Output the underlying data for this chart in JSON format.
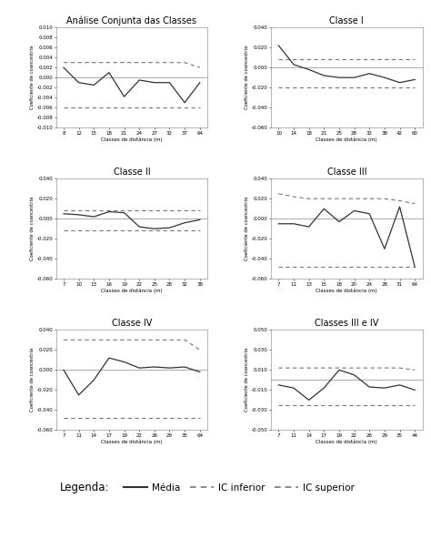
{
  "plots": [
    {
      "title": "Análise Conjunta das Classes",
      "x_labels": [
        "8",
        "12",
        "15",
        "18",
        "21",
        "24",
        "27",
        "32",
        "37",
        "64"
      ],
      "mean": [
        0.002,
        -0.001,
        -0.0015,
        0.001,
        -0.0038,
        -0.0005,
        -0.001,
        -0.001,
        -0.005,
        -0.001
      ],
      "ic_inf": [
        -0.006,
        -0.006,
        -0.006,
        -0.006,
        -0.006,
        -0.006,
        -0.006,
        -0.006,
        -0.006,
        -0.006
      ],
      "ic_sup": [
        0.003,
        0.003,
        0.003,
        0.003,
        0.003,
        0.003,
        0.003,
        0.003,
        0.003,
        0.002
      ],
      "ylim": [
        -0.01,
        0.01
      ],
      "yticks": [
        -0.01,
        -0.008,
        -0.006,
        -0.004,
        -0.002,
        0.0,
        0.002,
        0.004,
        0.006,
        0.008,
        0.01
      ],
      "ytick_labels": [
        "-0.010",
        "-0.008",
        "-0.006",
        "-0.004",
        "-0.002",
        "0.000",
        "0.002",
        "0.004",
        "0.006",
        "0.008",
        "0.010"
      ]
    },
    {
      "title": "Classe I",
      "x_labels": [
        "10",
        "14",
        "18",
        "21",
        "25",
        "28",
        "32",
        "38",
        "42",
        "60"
      ],
      "mean": [
        0.022,
        0.003,
        -0.002,
        -0.008,
        -0.01,
        -0.01,
        -0.006,
        -0.01,
        -0.015,
        -0.012
      ],
      "ic_inf": [
        -0.02,
        -0.02,
        -0.02,
        -0.02,
        -0.02,
        -0.02,
        -0.02,
        -0.02,
        -0.02,
        -0.02
      ],
      "ic_sup": [
        0.008,
        0.008,
        0.008,
        0.008,
        0.008,
        0.008,
        0.008,
        0.008,
        0.008,
        0.008
      ],
      "ylim": [
        -0.06,
        0.04
      ],
      "yticks": [
        -0.06,
        -0.04,
        -0.02,
        0.0,
        0.02,
        0.04
      ],
      "ytick_labels": [
        "-0.060",
        "-0.040",
        "-0.020",
        "0.000",
        "0.020",
        "0.040"
      ]
    },
    {
      "title": "Classe II",
      "x_labels": [
        "7",
        "10",
        "13",
        "16",
        "19",
        "22",
        "25",
        "28",
        "32",
        "38"
      ],
      "mean": [
        0.005,
        0.004,
        0.002,
        0.007,
        0.006,
        -0.008,
        -0.01,
        -0.009,
        -0.004,
        -0.001
      ],
      "ic_inf": [
        -0.012,
        -0.012,
        -0.012,
        -0.012,
        -0.012,
        -0.012,
        -0.012,
        -0.012,
        -0.012,
        -0.012
      ],
      "ic_sup": [
        0.008,
        0.008,
        0.008,
        0.008,
        0.008,
        0.008,
        0.008,
        0.008,
        0.008,
        0.008
      ],
      "ylim": [
        -0.06,
        0.04
      ],
      "yticks": [
        -0.06,
        -0.04,
        -0.02,
        0.0,
        0.02,
        0.04
      ],
      "ytick_labels": [
        "-0.060",
        "-0.040",
        "-0.020",
        "0.000",
        "0.020",
        "0.040"
      ]
    },
    {
      "title": "Classe III",
      "x_labels": [
        "7",
        "11",
        "13",
        "15",
        "18",
        "20",
        "24",
        "28",
        "31",
        "64"
      ],
      "mean": [
        -0.005,
        -0.005,
        -0.008,
        0.01,
        -0.003,
        0.008,
        0.005,
        -0.03,
        0.012,
        -0.048
      ],
      "ic_inf": [
        -0.048,
        -0.048,
        -0.048,
        -0.048,
        -0.048,
        -0.048,
        -0.048,
        -0.048,
        -0.048,
        -0.048
      ],
      "ic_sup": [
        0.025,
        0.022,
        0.02,
        0.02,
        0.02,
        0.02,
        0.02,
        0.02,
        0.018,
        0.015
      ],
      "ylim": [
        -0.06,
        0.04
      ],
      "yticks": [
        -0.06,
        -0.04,
        -0.02,
        0.0,
        0.02,
        0.04
      ],
      "ytick_labels": [
        "-0.060",
        "-0.040",
        "-0.020",
        "0.000",
        "0.020",
        "0.040"
      ]
    },
    {
      "title": "Classe IV",
      "x_labels": [
        "7",
        "11",
        "14",
        "17",
        "19",
        "22",
        "26",
        "29",
        "35",
        "64"
      ],
      "mean": [
        0.0,
        -0.025,
        -0.01,
        0.012,
        0.008,
        0.002,
        0.003,
        0.002,
        0.003,
        -0.002
      ],
      "ic_inf": [
        -0.048,
        -0.048,
        -0.048,
        -0.048,
        -0.048,
        -0.048,
        -0.048,
        -0.048,
        -0.048,
        -0.048
      ],
      "ic_sup": [
        0.03,
        0.03,
        0.03,
        0.03,
        0.03,
        0.03,
        0.03,
        0.03,
        0.03,
        0.02
      ],
      "ylim": [
        -0.06,
        0.04
      ],
      "yticks": [
        -0.06,
        -0.04,
        -0.02,
        0.0,
        0.02,
        0.04
      ],
      "ytick_labels": [
        "-0.060",
        "-0.040",
        "-0.020",
        "0.000",
        "0.020",
        "0.040"
      ]
    },
    {
      "title": "Classes III e IV",
      "x_labels": [
        "7",
        "11",
        "14",
        "17",
        "19",
        "22",
        "26",
        "29",
        "35",
        "44"
      ],
      "mean": [
        -0.005,
        -0.008,
        -0.02,
        -0.008,
        0.01,
        0.005,
        -0.007,
        -0.008,
        -0.005,
        -0.01
      ],
      "ic_inf": [
        -0.025,
        -0.025,
        -0.025,
        -0.025,
        -0.025,
        -0.025,
        -0.025,
        -0.025,
        -0.025,
        -0.025
      ],
      "ic_sup": [
        0.012,
        0.012,
        0.012,
        0.012,
        0.012,
        0.012,
        0.012,
        0.012,
        0.012,
        0.01
      ],
      "ylim": [
        -0.05,
        0.05
      ],
      "yticks": [
        -0.05,
        -0.03,
        -0.01,
        0.01,
        0.03,
        0.05
      ],
      "ytick_labels": [
        "-0.050",
        "-0.030",
        "-0.010",
        "0.010",
        "0.030",
        "0.050"
      ]
    }
  ],
  "xlabel": "Classes de distância (m)",
  "ylabel": "Coeficiente de coancestria",
  "line_color": "#333333",
  "ic_color": "#777777",
  "zero_line_color": "#aaaaaa",
  "background_color": "#ffffff",
  "legend_label": "Legenda:",
  "legend_solid": "Média",
  "legend_dash1": "IC inferior",
  "legend_dash2": "IC superior"
}
